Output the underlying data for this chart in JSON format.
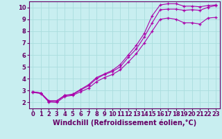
{
  "xlabel": "Windchill (Refroidissement éolien,°C)",
  "bg_color": "#c8eef0",
  "line_color": "#aa00aa",
  "grid_color": "#aadddd",
  "xlim": [
    -0.5,
    23.5
  ],
  "ylim": [
    1.5,
    10.5
  ],
  "xticks": [
    0,
    1,
    2,
    3,
    4,
    5,
    6,
    7,
    8,
    9,
    10,
    11,
    12,
    13,
    14,
    15,
    16,
    17,
    18,
    19,
    20,
    21,
    22,
    23
  ],
  "yticks": [
    2,
    3,
    4,
    5,
    6,
    7,
    8,
    9,
    10
  ],
  "line1_x": [
    0,
    1,
    2,
    3,
    4,
    5,
    6,
    7,
    8,
    9,
    10,
    11,
    12,
    13,
    14,
    15,
    16,
    17,
    18,
    19,
    20,
    21,
    22,
    23
  ],
  "line1_y": [
    2.9,
    2.8,
    2.1,
    2.1,
    2.6,
    2.7,
    3.1,
    3.5,
    4.1,
    4.4,
    4.7,
    5.2,
    6.0,
    6.8,
    7.8,
    9.3,
    10.2,
    10.3,
    10.3,
    10.1,
    10.1,
    10.05,
    10.15,
    10.2
  ],
  "line2_x": [
    0,
    1,
    2,
    3,
    4,
    5,
    6,
    7,
    8,
    9,
    10,
    11,
    12,
    13,
    14,
    15,
    16,
    17,
    18,
    19,
    20,
    21,
    22,
    23
  ],
  "line2_y": [
    2.9,
    2.8,
    2.15,
    2.15,
    2.6,
    2.65,
    3.05,
    3.4,
    4.0,
    4.35,
    4.6,
    5.0,
    5.8,
    6.5,
    7.5,
    8.7,
    9.8,
    9.85,
    9.85,
    9.75,
    9.8,
    9.75,
    10.0,
    10.15
  ],
  "line3_x": [
    0,
    1,
    2,
    3,
    4,
    5,
    6,
    7,
    8,
    9,
    10,
    11,
    12,
    13,
    14,
    15,
    16,
    17,
    18,
    19,
    20,
    21,
    22,
    23
  ],
  "line3_y": [
    2.85,
    2.75,
    2.05,
    2.0,
    2.5,
    2.6,
    2.9,
    3.2,
    3.75,
    4.1,
    4.35,
    4.75,
    5.4,
    6.1,
    7.0,
    8.0,
    9.0,
    9.1,
    9.0,
    8.7,
    8.7,
    8.6,
    9.1,
    9.15
  ],
  "xlabel_fontsize": 7,
  "tick_fontsize": 6,
  "label_color": "#660066"
}
